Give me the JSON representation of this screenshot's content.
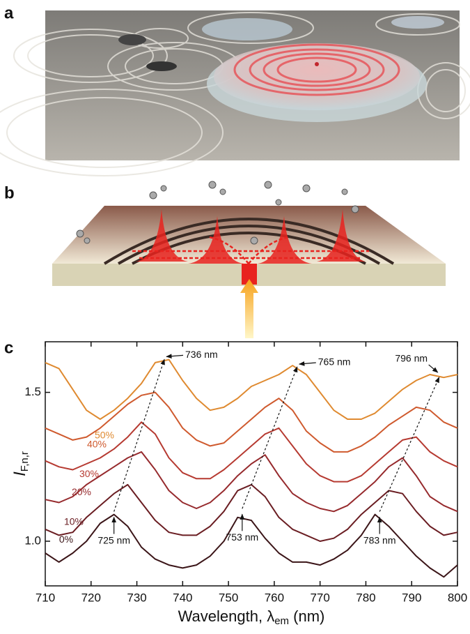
{
  "panels": {
    "a": "a",
    "b": "b",
    "c": "c"
  },
  "chart_data": {
    "type": "line",
    "xlabel": [
      "Wavelength, λ",
      "em",
      " (nm)"
    ],
    "ylabel": [
      "I",
      "F,n,r"
    ],
    "x": [
      710,
      713,
      716,
      719,
      722,
      725,
      728,
      731,
      734,
      737,
      740,
      743,
      746,
      749,
      752,
      755,
      758,
      761,
      764,
      767,
      770,
      773,
      776,
      779,
      782,
      785,
      788,
      791,
      794,
      797,
      800
    ],
    "series": [
      {
        "name": "0%",
        "color": "#3b1518",
        "values": [
          0.96,
          0.93,
          0.96,
          1.0,
          1.06,
          1.09,
          1.05,
          0.98,
          0.94,
          0.92,
          0.91,
          0.92,
          0.95,
          1.0,
          1.08,
          1.07,
          1.01,
          0.96,
          0.93,
          0.93,
          0.92,
          0.94,
          0.97,
          1.02,
          1.09,
          1.05,
          1.0,
          0.95,
          0.91,
          0.88,
          0.92
        ]
      },
      {
        "name": "10%",
        "color": "#6a1d22",
        "values": [
          1.04,
          1.02,
          1.03,
          1.08,
          1.12,
          1.16,
          1.19,
          1.13,
          1.07,
          1.03,
          1.02,
          1.02,
          1.05,
          1.1,
          1.17,
          1.19,
          1.15,
          1.08,
          1.04,
          1.02,
          1.0,
          1.01,
          1.04,
          1.09,
          1.13,
          1.17,
          1.16,
          1.1,
          1.05,
          1.02,
          1.03
        ]
      },
      {
        "name": "20%",
        "color": "#962a2d",
        "values": [
          1.14,
          1.13,
          1.15,
          1.19,
          1.22,
          1.25,
          1.28,
          1.3,
          1.24,
          1.17,
          1.13,
          1.11,
          1.13,
          1.17,
          1.22,
          1.26,
          1.29,
          1.22,
          1.16,
          1.13,
          1.11,
          1.1,
          1.12,
          1.16,
          1.2,
          1.25,
          1.28,
          1.22,
          1.15,
          1.12,
          1.1
        ]
      },
      {
        "name": "30%",
        "color": "#b63a31",
        "values": [
          1.27,
          1.25,
          1.24,
          1.26,
          1.28,
          1.31,
          1.35,
          1.4,
          1.36,
          1.28,
          1.23,
          1.21,
          1.21,
          1.24,
          1.28,
          1.32,
          1.36,
          1.38,
          1.32,
          1.26,
          1.22,
          1.2,
          1.2,
          1.22,
          1.26,
          1.3,
          1.34,
          1.35,
          1.3,
          1.27,
          1.25
        ]
      },
      {
        "name": "40%",
        "color": "#cf5a2e",
        "values": [
          1.38,
          1.36,
          1.34,
          1.35,
          1.38,
          1.42,
          1.46,
          1.49,
          1.5,
          1.45,
          1.38,
          1.34,
          1.32,
          1.33,
          1.37,
          1.41,
          1.45,
          1.48,
          1.44,
          1.37,
          1.33,
          1.3,
          1.3,
          1.32,
          1.35,
          1.39,
          1.42,
          1.45,
          1.44,
          1.4,
          1.38
        ]
      },
      {
        "name": "50%",
        "color": "#df8a30",
        "values": [
          1.6,
          1.58,
          1.51,
          1.44,
          1.41,
          1.44,
          1.48,
          1.53,
          1.6,
          1.61,
          1.54,
          1.48,
          1.44,
          1.45,
          1.48,
          1.52,
          1.54,
          1.56,
          1.59,
          1.56,
          1.5,
          1.44,
          1.41,
          1.41,
          1.43,
          1.47,
          1.51,
          1.54,
          1.56,
          1.55,
          1.56
        ]
      }
    ],
    "xlim": [
      710,
      800
    ],
    "ylim": [
      0.85,
      1.67
    ],
    "xticks": [
      710,
      720,
      730,
      740,
      750,
      760,
      770,
      780,
      790,
      800
    ],
    "yticks": [
      {
        "value": 1,
        "label": "1.0"
      },
      {
        "value": 1.5,
        "label": "1.5"
      }
    ],
    "annotations": {
      "high": [
        {
          "label": "736 nm",
          "x": 736,
          "y": 1.62
        },
        {
          "label": "765 nm",
          "x": 765,
          "y": 1.595
        },
        {
          "label": "796 nm",
          "x": 796,
          "y": 1.56
        }
      ],
      "low": [
        {
          "label": "725 nm",
          "x": 725,
          "y": 1.09
        },
        {
          "label": "753 nm",
          "x": 753,
          "y": 1.1
        },
        {
          "label": "783 nm",
          "x": 783,
          "y": 1.09
        }
      ]
    }
  }
}
